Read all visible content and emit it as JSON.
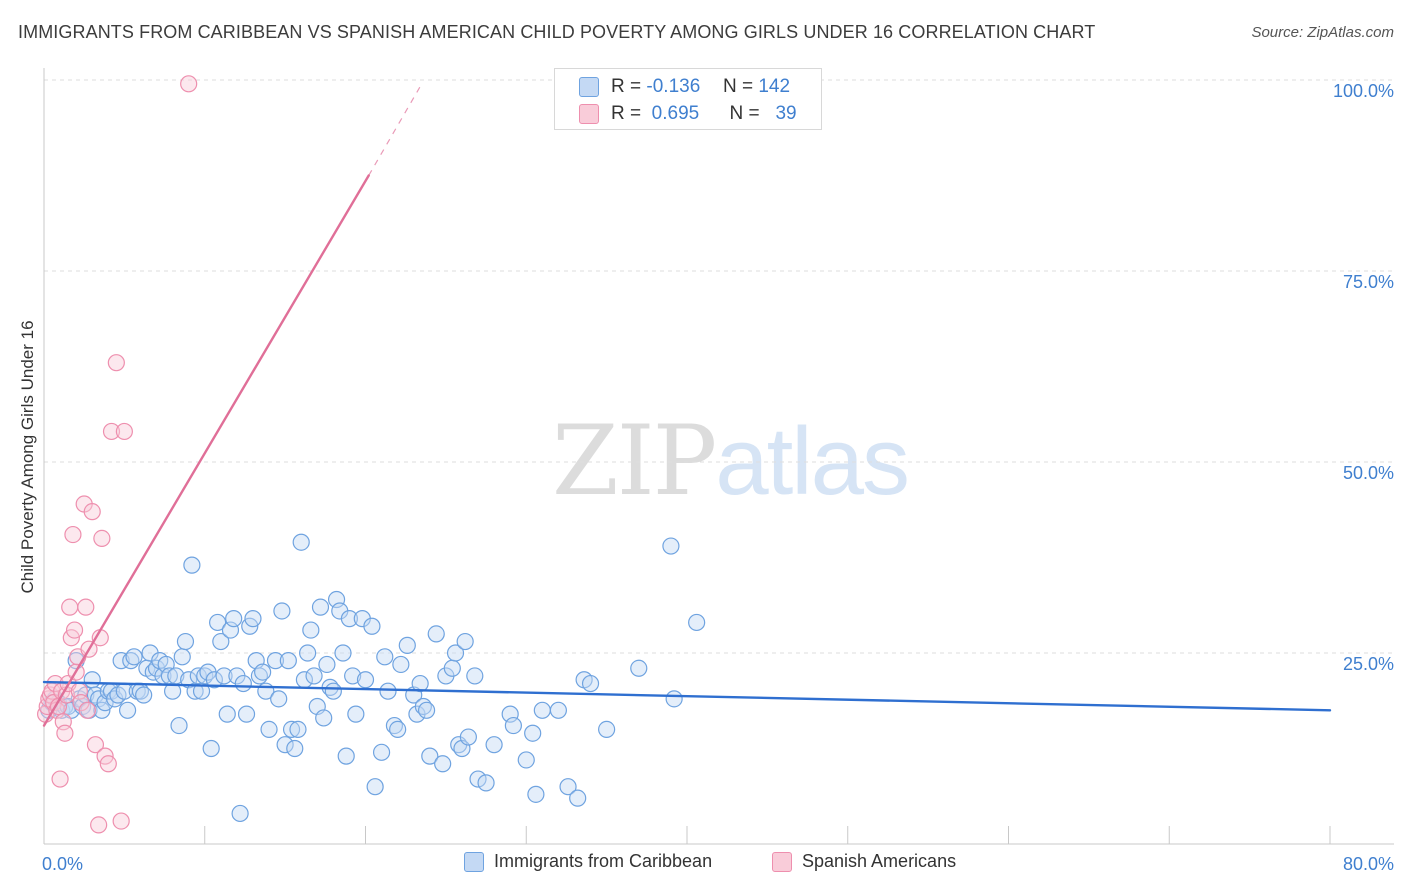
{
  "colors": {
    "blue": "#6fa3e0",
    "blue_fill": "#c4d9f4",
    "blue_line": "#2f6fd0",
    "pink": "#ee8fae",
    "pink_fill": "#f9ccd9",
    "pink_line": "#e06f98",
    "tick_label": "#3f7fcf"
  },
  "watermark": {
    "zip": "ZIP",
    "atlas": "atlas"
  },
  "chart_data": {
    "type": "scatter",
    "title": "IMMIGRANTS FROM CARIBBEAN VS SPANISH AMERICAN CHILD POVERTY AMONG GIRLS UNDER 16 CORRELATION CHART",
    "source": "Source: ZipAtlas.com",
    "xlabel": "",
    "ylabel": "Child Poverty Among Girls Under 16",
    "xlim": [
      0,
      80
    ],
    "ylim": [
      0,
      100
    ],
    "x_tick_labels": [
      "0.0%",
      "80.0%"
    ],
    "y_ticks": [
      {
        "value": 25,
        "label": "25.0%"
      },
      {
        "value": 50,
        "label": "50.0%"
      },
      {
        "value": 75,
        "label": "75.0%"
      },
      {
        "value": 100,
        "label": "100.0%"
      }
    ],
    "grid": true,
    "legend": {
      "rows": [
        {
          "r_label": "R =",
          "r_value": "-0.136",
          "n_label": "N =",
          "n_value": "142"
        },
        {
          "r_label": "R =",
          "r_value": "0.695",
          "n_label": "N =",
          "n_value": "39"
        }
      ]
    },
    "series": [
      {
        "name": "Immigrants from Caribbean",
        "color": "blue",
        "r": -0.136,
        "n": 142,
        "trend": {
          "x0": 0,
          "y0": 21.2,
          "x1": 80,
          "y1": 17.5
        },
        "points": [
          [
            0.3,
            17.5
          ],
          [
            0.5,
            18.5
          ],
          [
            0.7,
            19
          ],
          [
            0.9,
            18.5
          ],
          [
            1.1,
            17.5
          ],
          [
            1.3,
            18
          ],
          [
            1.5,
            18
          ],
          [
            1.7,
            17.5
          ],
          [
            2.0,
            24
          ],
          [
            2.2,
            19
          ],
          [
            2.4,
            18
          ],
          [
            2.6,
            19.5
          ],
          [
            2.8,
            17.5
          ],
          [
            3.0,
            21.5
          ],
          [
            3.2,
            19.5
          ],
          [
            3.4,
            19
          ],
          [
            3.6,
            17.5
          ],
          [
            3.8,
            18.5
          ],
          [
            4.0,
            20
          ],
          [
            4.2,
            20
          ],
          [
            4.4,
            19
          ],
          [
            4.6,
            19.5
          ],
          [
            4.8,
            24
          ],
          [
            5.0,
            20
          ],
          [
            5.2,
            17.5
          ],
          [
            5.4,
            24
          ],
          [
            5.6,
            24.5
          ],
          [
            5.8,
            20
          ],
          [
            6.0,
            20
          ],
          [
            6.2,
            19.5
          ],
          [
            6.4,
            23
          ],
          [
            6.6,
            25
          ],
          [
            6.8,
            22.5
          ],
          [
            7.0,
            23
          ],
          [
            7.2,
            24
          ],
          [
            7.4,
            22
          ],
          [
            7.6,
            23.5
          ],
          [
            7.8,
            22
          ],
          [
            8.0,
            20
          ],
          [
            8.2,
            22
          ],
          [
            8.4,
            15.5
          ],
          [
            8.6,
            24.5
          ],
          [
            8.8,
            26.5
          ],
          [
            9.0,
            21.5
          ],
          [
            9.2,
            36.5
          ],
          [
            9.4,
            20
          ],
          [
            9.6,
            22
          ],
          [
            9.8,
            20
          ],
          [
            10.0,
            22
          ],
          [
            10.2,
            22.5
          ],
          [
            10.4,
            12.5
          ],
          [
            10.6,
            21.5
          ],
          [
            10.8,
            29
          ],
          [
            11.0,
            26.5
          ],
          [
            11.2,
            22
          ],
          [
            11.4,
            17
          ],
          [
            11.6,
            28
          ],
          [
            11.8,
            29.5
          ],
          [
            12.0,
            22
          ],
          [
            12.2,
            4
          ],
          [
            12.4,
            21
          ],
          [
            12.6,
            17
          ],
          [
            12.8,
            28.5
          ],
          [
            13.0,
            29.5
          ],
          [
            13.2,
            24
          ],
          [
            13.4,
            22
          ],
          [
            13.6,
            22.5
          ],
          [
            13.8,
            20
          ],
          [
            14.0,
            15
          ],
          [
            14.4,
            24
          ],
          [
            14.6,
            19
          ],
          [
            14.8,
            30.5
          ],
          [
            15.0,
            13
          ],
          [
            15.2,
            24
          ],
          [
            15.4,
            15
          ],
          [
            15.6,
            12.5
          ],
          [
            15.8,
            15
          ],
          [
            16.0,
            39.5
          ],
          [
            16.2,
            21.5
          ],
          [
            16.4,
            25
          ],
          [
            16.6,
            28
          ],
          [
            16.8,
            22
          ],
          [
            17.0,
            18
          ],
          [
            17.2,
            31
          ],
          [
            17.4,
            16.5
          ],
          [
            17.6,
            23.5
          ],
          [
            17.8,
            20.5
          ],
          [
            18.0,
            20
          ],
          [
            18.2,
            32
          ],
          [
            18.4,
            30.5
          ],
          [
            18.6,
            25
          ],
          [
            18.8,
            11.5
          ],
          [
            19.0,
            29.5
          ],
          [
            19.2,
            22
          ],
          [
            19.4,
            17
          ],
          [
            19.8,
            29.5
          ],
          [
            20.0,
            21.5
          ],
          [
            20.4,
            28.5
          ],
          [
            20.6,
            7.5
          ],
          [
            21.0,
            12
          ],
          [
            21.2,
            24.5
          ],
          [
            21.4,
            20
          ],
          [
            21.8,
            15.5
          ],
          [
            22.0,
            15
          ],
          [
            22.2,
            23.5
          ],
          [
            22.6,
            26
          ],
          [
            23.0,
            19.5
          ],
          [
            23.2,
            17
          ],
          [
            23.4,
            21
          ],
          [
            23.6,
            18
          ],
          [
            23.8,
            17.5
          ],
          [
            24.0,
            11.5
          ],
          [
            24.4,
            27.5
          ],
          [
            24.8,
            10.5
          ],
          [
            25.0,
            22
          ],
          [
            25.4,
            23
          ],
          [
            25.6,
            25
          ],
          [
            25.8,
            13
          ],
          [
            26.0,
            12.5
          ],
          [
            26.2,
            26.5
          ],
          [
            26.4,
            14
          ],
          [
            26.8,
            22
          ],
          [
            27.0,
            8.5
          ],
          [
            27.5,
            8
          ],
          [
            28.0,
            13
          ],
          [
            29.0,
            17
          ],
          [
            29.2,
            15.5
          ],
          [
            30.0,
            11
          ],
          [
            30.4,
            14.5
          ],
          [
            30.6,
            6.5
          ],
          [
            31.0,
            17.5
          ],
          [
            32.0,
            17.5
          ],
          [
            32.6,
            7.5
          ],
          [
            33.2,
            6
          ],
          [
            33.6,
            21.5
          ],
          [
            34.0,
            21
          ],
          [
            35.0,
            15
          ],
          [
            37.0,
            23
          ],
          [
            39.0,
            39
          ],
          [
            39.2,
            19
          ],
          [
            40.6,
            29
          ]
        ]
      },
      {
        "name": "Spanish Americans",
        "color": "pink",
        "r": 0.695,
        "n": 39,
        "trend": {
          "x0": 0,
          "y0": 15.5,
          "x1": 20.2,
          "y1": 87.5
        },
        "trend_dashed": {
          "x0": 20.2,
          "y0": 87.5,
          "x1": 23.5,
          "y1": 99.5
        },
        "points": [
          [
            0.1,
            17
          ],
          [
            0.2,
            18
          ],
          [
            0.3,
            19
          ],
          [
            0.4,
            19.5
          ],
          [
            0.5,
            20
          ],
          [
            0.6,
            18.5
          ],
          [
            0.7,
            21
          ],
          [
            0.8,
            17.5
          ],
          [
            0.9,
            18
          ],
          [
            1.0,
            8.5
          ],
          [
            1.1,
            20
          ],
          [
            1.2,
            16
          ],
          [
            1.3,
            14.5
          ],
          [
            1.4,
            19.5
          ],
          [
            1.5,
            21
          ],
          [
            1.6,
            31
          ],
          [
            1.7,
            27
          ],
          [
            1.8,
            40.5
          ],
          [
            1.9,
            28
          ],
          [
            2.0,
            22.5
          ],
          [
            2.1,
            24.5
          ],
          [
            2.2,
            20
          ],
          [
            2.3,
            18.5
          ],
          [
            2.5,
            44.5
          ],
          [
            2.6,
            31
          ],
          [
            2.7,
            17.5
          ],
          [
            2.8,
            25.5
          ],
          [
            3.0,
            43.5
          ],
          [
            3.2,
            13
          ],
          [
            3.4,
            2.5
          ],
          [
            3.5,
            27
          ],
          [
            3.6,
            40
          ],
          [
            3.8,
            11.5
          ],
          [
            4.0,
            10.5
          ],
          [
            4.2,
            54
          ],
          [
            4.5,
            63
          ],
          [
            4.8,
            3
          ],
          [
            5.0,
            54
          ],
          [
            9.0,
            99.5
          ]
        ]
      }
    ]
  }
}
